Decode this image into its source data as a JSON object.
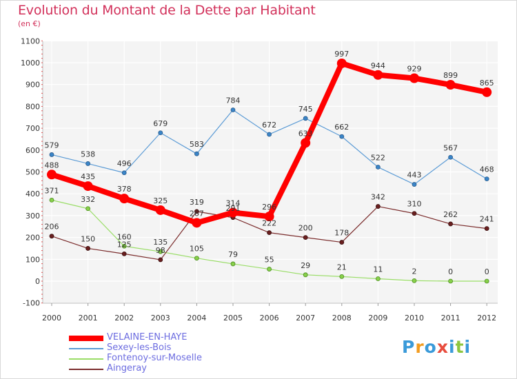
{
  "title": "Evolution du Montant de la Dette par Habitant",
  "subtitle": "(en €)",
  "logo": {
    "text": "Proxiti",
    "colors": [
      "#3a9ad9",
      "#f29c1f",
      "#3a9ad9",
      "#e84c3d",
      "#3a9ad9",
      "#8dc63f",
      "#3a9ad9"
    ]
  },
  "chart_data": {
    "type": "line",
    "title": "Evolution du Montant de la Dette par Habitant",
    "ylabel": "(en €)",
    "ylim": [
      -100,
      1100
    ],
    "yticks": [
      -100,
      0,
      100,
      200,
      300,
      400,
      500,
      600,
      700,
      800,
      900,
      1000,
      1100
    ],
    "categories": [
      "2000",
      "2001",
      "2002",
      "2003",
      "2004",
      "2005",
      "2006",
      "2007",
      "2008",
      "2009",
      "2010",
      "2011",
      "2012"
    ],
    "grid": true,
    "legend_position": "bottom-left",
    "series": [
      {
        "name": "VELAINE-EN-HAYE",
        "color": "#ff0000",
        "values": [
          488,
          435,
          378,
          325,
          267,
          314,
          296,
          633,
          997,
          944,
          929,
          899,
          865
        ],
        "labels": [
          "488",
          "435",
          "378",
          "325",
          "267",
          "314",
          "296",
          "633",
          "997",
          "944",
          "929",
          "899",
          "865"
        ]
      },
      {
        "name": "Sexey-les-Bois",
        "color": "#5b9bd5",
        "values": [
          579,
          538,
          496,
          679,
          583,
          784,
          672,
          745,
          662,
          522,
          443,
          567,
          468
        ],
        "labels": [
          "579",
          "538",
          "496",
          "679",
          "583",
          "784",
          "672",
          "745",
          "662",
          "522",
          "443",
          "567",
          "468"
        ]
      },
      {
        "name": "Fontenoy-sur-Moselle",
        "color": "#99dd66",
        "values": [
          371,
          332,
          160,
          135,
          105,
          79,
          55,
          29,
          21,
          11,
          2,
          0,
          0
        ],
        "labels": [
          "371",
          "332",
          "160",
          "135",
          "105",
          "79",
          "55",
          "29",
          "21",
          "11",
          "2",
          "0",
          "0"
        ]
      },
      {
        "name": "Aingeray",
        "color": "#7a2b2b",
        "values": [
          206,
          150,
          125,
          98,
          319,
          291,
          222,
          200,
          178,
          342,
          310,
          262,
          241
        ],
        "labels": [
          "206",
          "150",
          "125",
          "98",
          "319",
          "291",
          "222",
          "200",
          "178",
          "342",
          "310",
          "262",
          "241"
        ]
      }
    ]
  }
}
